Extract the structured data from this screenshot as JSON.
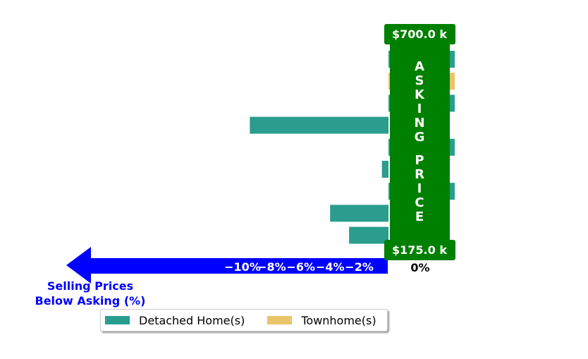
{
  "chart_data": {
    "type": "bar",
    "orientation": "horizontal",
    "stacked": false,
    "categories": [
      "",
      "",
      "",
      "",
      "",
      "",
      "",
      "",
      ""
    ],
    "series": [
      {
        "name": "Detached Home(s)",
        "color": "#2a9d8f",
        "values": [
          0.0,
          null,
          0.0,
          -9.5,
          0.0,
          -0.45,
          0.0,
          -4.0,
          -2.7
        ]
      },
      {
        "name": "Townhome(s)",
        "color": "#e9c46a",
        "values": [
          null,
          0.0,
          null,
          null,
          null,
          null,
          null,
          null,
          null
        ]
      }
    ],
    "xlim": [
      -11,
      0
    ],
    "xticks": [
      -10,
      -8,
      -6,
      -4,
      -2
    ],
    "xtick_labels": [
      "−10%",
      "−8%",
      "−6%",
      "−4%",
      "−2%"
    ],
    "zero_label": "0%",
    "xlabel": "Selling Prices\nBelow Asking (%)",
    "axis_arrow_color": "#0000ff",
    "asking_price_column": {
      "label": "ASKING PRICE",
      "color": "#008000",
      "top_price": "$700.0 k",
      "bottom_price": "$175.0 k"
    },
    "legend": {
      "position": "bottom-center",
      "entries": [
        "Detached Home(s)",
        "Townhome(s)"
      ]
    }
  }
}
